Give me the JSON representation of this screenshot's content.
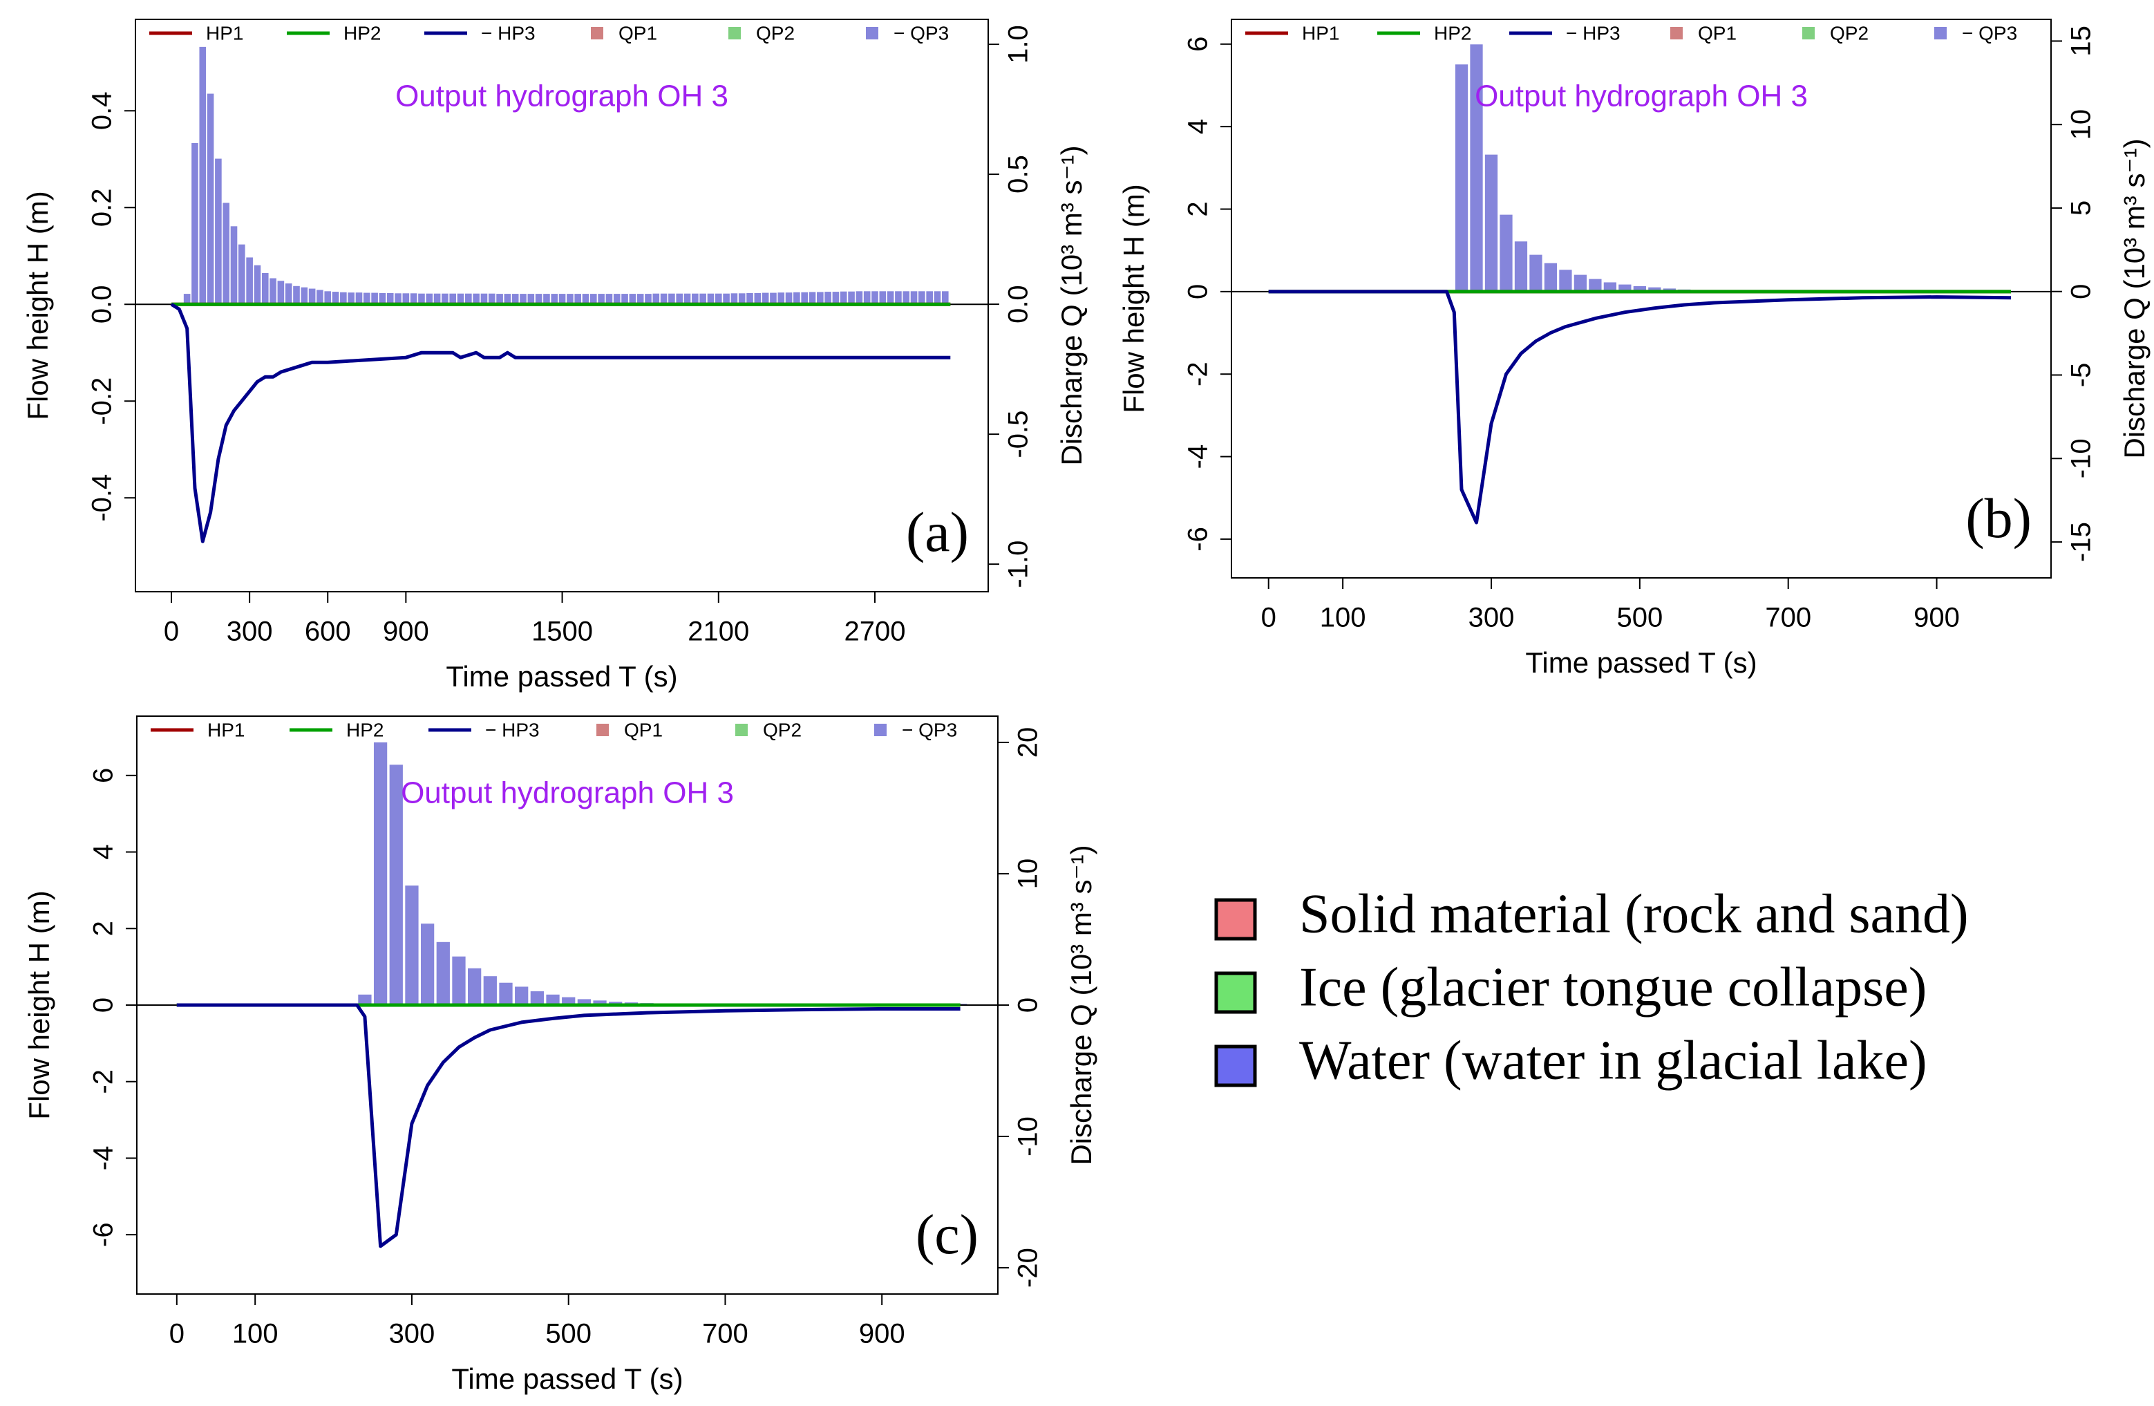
{
  "chart_data": [
    {
      "type": "combo",
      "title": "Output hydrograph OH 3",
      "panel_label": "(a)",
      "xlabel": "Time passed T (s)",
      "ylabel": "Flow height H (m)",
      "y2label": "Discharge Q (10³ m³ s⁻¹)",
      "xlim": [
        -138,
        3135
      ],
      "ylim": [
        -0.594,
        0.589
      ],
      "y2lim": [
        -1.106,
        1.096
      ],
      "xticks": [
        0,
        300,
        600,
        900,
        1500,
        2100,
        2700
      ],
      "yticks": [
        -0.4,
        -0.2,
        {
          "value": 0,
          "label": "0.0"
        },
        0.2,
        0.4
      ],
      "y2ticks": [
        {
          "value": -1,
          "label": "-1.0"
        },
        -0.5,
        {
          "value": 0,
          "label": "0.0"
        },
        0.5,
        {
          "value": 1,
          "label": "1.0"
        }
      ],
      "series": [
        {
          "name": "HP1",
          "color": "#a00000",
          "type": "line",
          "x": [
            0,
            2990
          ],
          "values": [
            0,
            0
          ]
        },
        {
          "name": "HP2",
          "color": "#00a000",
          "type": "line",
          "x": [
            0,
            2990
          ],
          "values": [
            0,
            0
          ]
        },
        {
          "name": "− HP3",
          "color": "#00008b",
          "type": "line",
          "x": [
            0,
            30,
            60,
            90,
            120,
            150,
            180,
            210,
            240,
            270,
            300,
            330,
            360,
            390,
            420,
            480,
            540,
            600,
            900,
            960,
            1080,
            1110,
            1170,
            1200,
            1260,
            1290,
            1320,
            2990
          ],
          "values": [
            0,
            -0.01,
            -0.05,
            -0.38,
            -0.49,
            -0.43,
            -0.32,
            -0.25,
            -0.22,
            -0.2,
            -0.18,
            -0.16,
            -0.15,
            -0.15,
            -0.14,
            -0.13,
            -0.12,
            -0.12,
            -0.11,
            -0.1,
            -0.1,
            -0.11,
            -0.1,
            -0.11,
            -0.11,
            -0.1,
            -0.11,
            -0.11
          ]
        },
        {
          "name": "QP1",
          "color": "#d08080",
          "type": "bar",
          "axis": "y2",
          "x": [
            0,
            2990
          ],
          "values": [
            0,
            0
          ]
        },
        {
          "name": "QP2",
          "color": "#80d080",
          "type": "bar",
          "axis": "y2",
          "x": [
            0,
            2990
          ],
          "values": [
            0,
            0
          ]
        },
        {
          "name": "− QP3",
          "color": "#8585db",
          "type": "bar",
          "axis": "y2",
          "x": [
            60,
            90,
            120,
            150,
            180,
            210,
            240,
            270,
            300,
            330,
            360,
            390,
            420,
            450,
            480,
            510,
            540,
            570,
            600,
            630,
            660,
            690,
            720,
            750,
            780,
            810,
            840,
            870,
            900,
            930,
            960,
            990,
            1020,
            1050,
            1080,
            1110,
            1140,
            1170,
            1200,
            1230,
            1260,
            1290,
            1320,
            1350,
            1380,
            1410,
            1440,
            1470,
            1500,
            1530,
            1560,
            1590,
            1620,
            1650,
            1680,
            1710,
            1740,
            1770,
            1800,
            1830,
            1860,
            1890,
            1920,
            1950,
            1980,
            2010,
            2040,
            2070,
            2100,
            2130,
            2160,
            2190,
            2220,
            2250,
            2280,
            2310,
            2340,
            2370,
            2400,
            2430,
            2460,
            2490,
            2520,
            2550,
            2580,
            2610,
            2640,
            2670,
            2700,
            2730,
            2760,
            2790,
            2820,
            2850,
            2880,
            2910,
            2940,
            2970
          ],
          "values": [
            0.04,
            0.62,
            0.99,
            0.81,
            0.56,
            0.39,
            0.3,
            0.23,
            0.18,
            0.15,
            0.12,
            0.1,
            0.09,
            0.08,
            0.07,
            0.065,
            0.06,
            0.055,
            0.05,
            0.048,
            0.046,
            0.045,
            0.045,
            0.044,
            0.044,
            0.043,
            0.043,
            0.042,
            0.042,
            0.042,
            0.041,
            0.041,
            0.041,
            0.041,
            0.041,
            0.041,
            0.041,
            0.041,
            0.041,
            0.041,
            0.04,
            0.04,
            0.04,
            0.04,
            0.04,
            0.04,
            0.04,
            0.04,
            0.04,
            0.04,
            0.04,
            0.04,
            0.04,
            0.04,
            0.04,
            0.04,
            0.04,
            0.04,
            0.04,
            0.04,
            0.041,
            0.041,
            0.041,
            0.041,
            0.041,
            0.041,
            0.041,
            0.041,
            0.041,
            0.041,
            0.042,
            0.042,
            0.043,
            0.043,
            0.044,
            0.044,
            0.045,
            0.045,
            0.046,
            0.046,
            0.047,
            0.047,
            0.048,
            0.048,
            0.049,
            0.049,
            0.05,
            0.05,
            0.05,
            0.05,
            0.05,
            0.05,
            0.05,
            0.05,
            0.05,
            0.05,
            0.05,
            0.05
          ]
        }
      ]
    },
    {
      "type": "combo",
      "title": "Output hydrograph OH 3",
      "panel_label": "(b)",
      "xlabel": "Time passed T (s)",
      "ylabel": "Flow height H (m)",
      "y2label": "Discharge Q (10³ m³ s⁻¹)",
      "xlim": [
        -50,
        1054
      ],
      "ylim": [
        -6.94,
        6.6
      ],
      "y2lim": [
        -17.15,
        16.3
      ],
      "xticks": [
        0,
        100,
        300,
        500,
        700,
        900
      ],
      "yticks": [
        -6,
        -4,
        -2,
        0,
        2,
        4,
        6
      ],
      "y2ticks": [
        -15,
        -10,
        -5,
        0,
        5,
        10,
        15
      ],
      "series": [
        {
          "name": "HP1",
          "color": "#a00000",
          "type": "line",
          "x": [
            0,
            1000
          ],
          "values": [
            0,
            0
          ]
        },
        {
          "name": "HP2",
          "color": "#00a000",
          "type": "line",
          "x": [
            0,
            1000
          ],
          "values": [
            0,
            0
          ]
        },
        {
          "name": "− HP3",
          "color": "#00008b",
          "type": "line",
          "x": [
            0,
            240,
            250,
            260,
            280,
            300,
            320,
            340,
            360,
            380,
            400,
            440,
            480,
            520,
            560,
            600,
            700,
            800,
            900,
            1000
          ],
          "values": [
            0,
            0,
            -0.5,
            -4.8,
            -5.6,
            -3.2,
            -2,
            -1.5,
            -1.2,
            -1,
            -0.85,
            -0.65,
            -0.5,
            -0.4,
            -0.32,
            -0.27,
            -0.2,
            -0.15,
            -0.13,
            -0.15
          ]
        },
        {
          "name": "QP1",
          "color": "#d08080",
          "type": "bar",
          "axis": "y2",
          "x": [
            0,
            1000
          ],
          "values": [
            0,
            0
          ]
        },
        {
          "name": "QP2",
          "color": "#80d080",
          "type": "bar",
          "axis": "y2",
          "x": [
            0,
            1000
          ],
          "values": [
            0,
            0
          ]
        },
        {
          "name": "− QP3",
          "color": "#8585db",
          "type": "bar",
          "axis": "y2",
          "x": [
            260,
            280,
            300,
            320,
            340,
            360,
            380,
            400,
            420,
            440,
            460,
            480,
            500,
            520,
            540,
            560,
            580,
            600,
            620,
            640,
            660,
            680,
            700,
            720,
            740,
            760,
            780,
            800,
            820,
            840,
            860,
            880,
            900,
            920,
            940,
            960,
            980,
            1000
          ],
          "values": [
            13.6,
            14.8,
            8.2,
            4.6,
            3,
            2.2,
            1.7,
            1.3,
            1,
            0.75,
            0.55,
            0.42,
            0.32,
            0.25,
            0.18,
            0.12,
            0.08,
            0.05,
            0.04,
            0.03,
            0.02,
            0.02,
            0.02,
            0.02,
            0.02,
            0.02,
            0.02,
            0.02,
            0.02,
            0.02,
            0.02,
            0.02,
            0.02,
            0.02,
            0.02,
            0.02,
            0.02,
            0.02
          ]
        }
      ]
    },
    {
      "type": "combo",
      "title": "Output hydrograph OH 3",
      "panel_label": "(c)",
      "xlabel": "Time passed T (s)",
      "ylabel": "Flow height H (m)",
      "y2label": "Discharge Q (10³ m³ s⁻¹)",
      "xlim": [
        -51,
        1048
      ],
      "ylim": [
        -7.55,
        7.55
      ],
      "y2lim": [
        -22,
        22
      ],
      "xticks": [
        0,
        100,
        300,
        500,
        700,
        900
      ],
      "yticks": [
        -6,
        -4,
        -2,
        0,
        2,
        4,
        6
      ],
      "y2ticks": [
        -20,
        -10,
        0,
        10,
        20
      ],
      "series": [
        {
          "name": "HP1",
          "color": "#a00000",
          "type": "line",
          "x": [
            0,
            1000
          ],
          "values": [
            0,
            0
          ]
        },
        {
          "name": "HP2",
          "color": "#00a000",
          "type": "line",
          "x": [
            0,
            1000
          ],
          "values": [
            0,
            0
          ]
        },
        {
          "name": "− HP3",
          "color": "#00008b",
          "type": "line",
          "x": [
            0,
            230,
            240,
            260,
            280,
            300,
            320,
            340,
            360,
            380,
            400,
            440,
            480,
            520,
            600,
            700,
            800,
            900,
            1000
          ],
          "values": [
            0,
            0,
            -0.3,
            -6.3,
            -6,
            -3.1,
            -2.1,
            -1.5,
            -1.1,
            -0.85,
            -0.65,
            -0.45,
            -0.35,
            -0.27,
            -0.2,
            -0.15,
            -0.12,
            -0.1,
            -0.1
          ]
        },
        {
          "name": "QP1",
          "color": "#d08080",
          "type": "bar",
          "axis": "y2",
          "x": [
            0,
            1000
          ],
          "values": [
            0,
            0
          ]
        },
        {
          "name": "QP2",
          "color": "#80d080",
          "type": "bar",
          "axis": "y2",
          "x": [
            0,
            1000
          ],
          "values": [
            0,
            0
          ]
        },
        {
          "name": "− QP3",
          "color": "#8585db",
          "type": "bar",
          "axis": "y2",
          "x": [
            240,
            260,
            280,
            300,
            320,
            340,
            360,
            380,
            400,
            420,
            440,
            460,
            480,
            500,
            520,
            540,
            560,
            580,
            600,
            620,
            640,
            660,
            680,
            700,
            720,
            740,
            760,
            780,
            800,
            820,
            840,
            860,
            880,
            900,
            920,
            940,
            960,
            980,
            1000
          ],
          "values": [
            0.8,
            20,
            18.3,
            9.1,
            6.2,
            4.8,
            3.7,
            2.8,
            2.2,
            1.7,
            1.4,
            1.05,
            0.8,
            0.6,
            0.45,
            0.35,
            0.25,
            0.2,
            0.15,
            0.12,
            0.1,
            0.1,
            0.1,
            0.1,
            0.1,
            0.1,
            0.1,
            0.1,
            0.1,
            0.1,
            0.1,
            0.1,
            0.1,
            0.1,
            0.1,
            0.1,
            0.1,
            0.1,
            0.1
          ]
        }
      ]
    }
  ],
  "legend_panel": {
    "items": [
      {
        "label": "Solid material (rock and sand)",
        "color": "#f07b82"
      },
      {
        "label": "Ice (glacier tongue collapse)",
        "color": "#6fe36f"
      },
      {
        "label": "Water (water in glacial lake)",
        "color": "#6b6bf0"
      }
    ]
  }
}
